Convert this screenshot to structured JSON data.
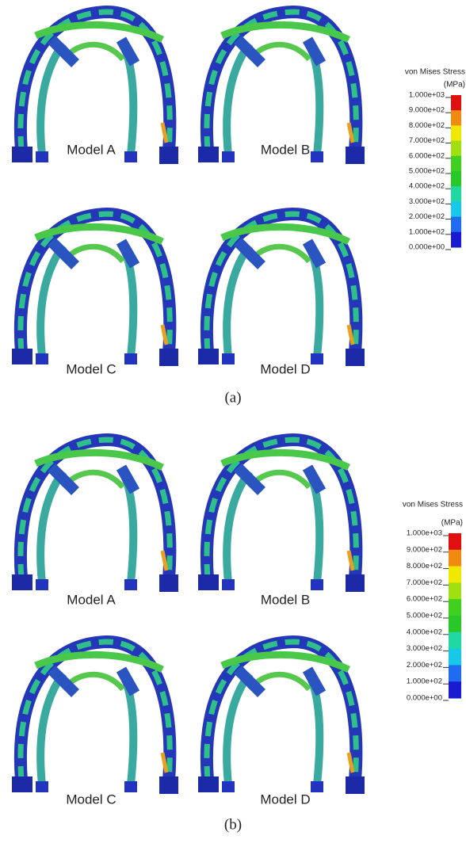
{
  "panels": [
    {
      "caption": "(a)",
      "models": [
        "Model A",
        "Model B",
        "Model C",
        "Model D"
      ],
      "legend": {
        "title": "von Mises Stress",
        "unit": "(MPa)",
        "ticks": [
          "1.000e+03",
          "9.000e+02",
          "8.000e+02",
          "7.000e+02",
          "6.000e+02",
          "5.000e+02",
          "4.000e+02",
          "3.000e+02",
          "2.000e+02",
          "1.000e+02",
          "0.000e+00"
        ]
      }
    },
    {
      "caption": "(b)",
      "models": [
        "Model A",
        "Model B",
        "Model C",
        "Model D"
      ],
      "legend": {
        "title": "von Mises Stress",
        "unit": "(MPa)",
        "ticks": [
          "1.000e+03",
          "9.000e+02",
          "8.000e+02",
          "7.000e+02",
          "6.000e+02",
          "5.000e+02",
          "4.000e+02",
          "3.000e+02",
          "2.000e+02",
          "1.000e+02",
          "0.000e+00"
        ]
      }
    }
  ]
}
